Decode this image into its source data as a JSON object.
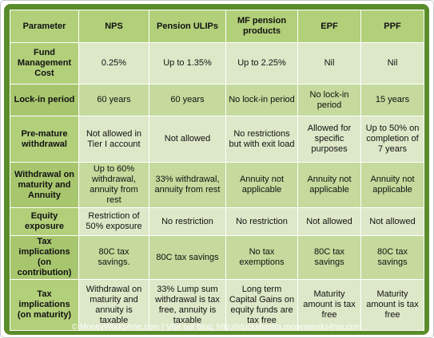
{
  "table": {
    "headers": [
      "Parameter",
      "NPS",
      "Pension ULIPs",
      "MF pension products",
      "EPF",
      "PPF"
    ],
    "rows": [
      {
        "parameter": "Fund Management Cost",
        "cells": [
          "0.25%",
          "Up to 1.35%",
          "Up to 2.25%",
          "Nil",
          "Nil"
        ]
      },
      {
        "parameter": "Lock-in period",
        "cells": [
          "60 years",
          "60 years",
          "No lock-in period",
          "No lock-in period",
          "15 years"
        ]
      },
      {
        "parameter": "Pre-mature withdrawal",
        "cells": [
          "Not allowed in Tier I account",
          "Not allowed",
          "No restrictions but with exit load",
          "Allowed for specific purposes",
          "Up to 50% on completion of 7 years"
        ]
      },
      {
        "parameter": "Withdrawal on maturity and Annuity",
        "cells": [
          "Up to 60% withdrawal, annuity from rest",
          "33% withdrawal, annuity from rest",
          "Annuity not applicable",
          "Annuity not applicable",
          "Annuity not applicable"
        ]
      },
      {
        "parameter": "Equity exposure",
        "cells": [
          "Restriction of 50% exposure",
          "No restriction",
          "No restriction",
          "Not allowed",
          "Not allowed"
        ]
      },
      {
        "parameter": "Tax implications (on contribution)",
        "cells": [
          "80C tax savings.",
          "80C tax savings",
          "No tax exemptions",
          "80C tax savings",
          "80C tax savings"
        ]
      },
      {
        "parameter": "Tax implications (on maturity)",
        "cells": [
          "Withdrawal on maturity and annuity is taxable",
          "33% Lump sum withdrawal is tax free, annuity is taxable",
          "Long term Capital Gains on equity funds are tax free",
          "Maturity amount is tax free",
          "Maturity amount is tax free"
        ]
      }
    ]
  },
  "footer": {
    "left": "© MoneyWorks4me.com",
    "separator": "|",
    "right": "Visit our blog: http://stockshastra.moneyworks4me.com"
  },
  "colors": {
    "frame_green": "#5b8c2a",
    "header_cell": "#b2cf7a",
    "row_light": "#dde8c8",
    "row_dark": "#c5da9c"
  }
}
